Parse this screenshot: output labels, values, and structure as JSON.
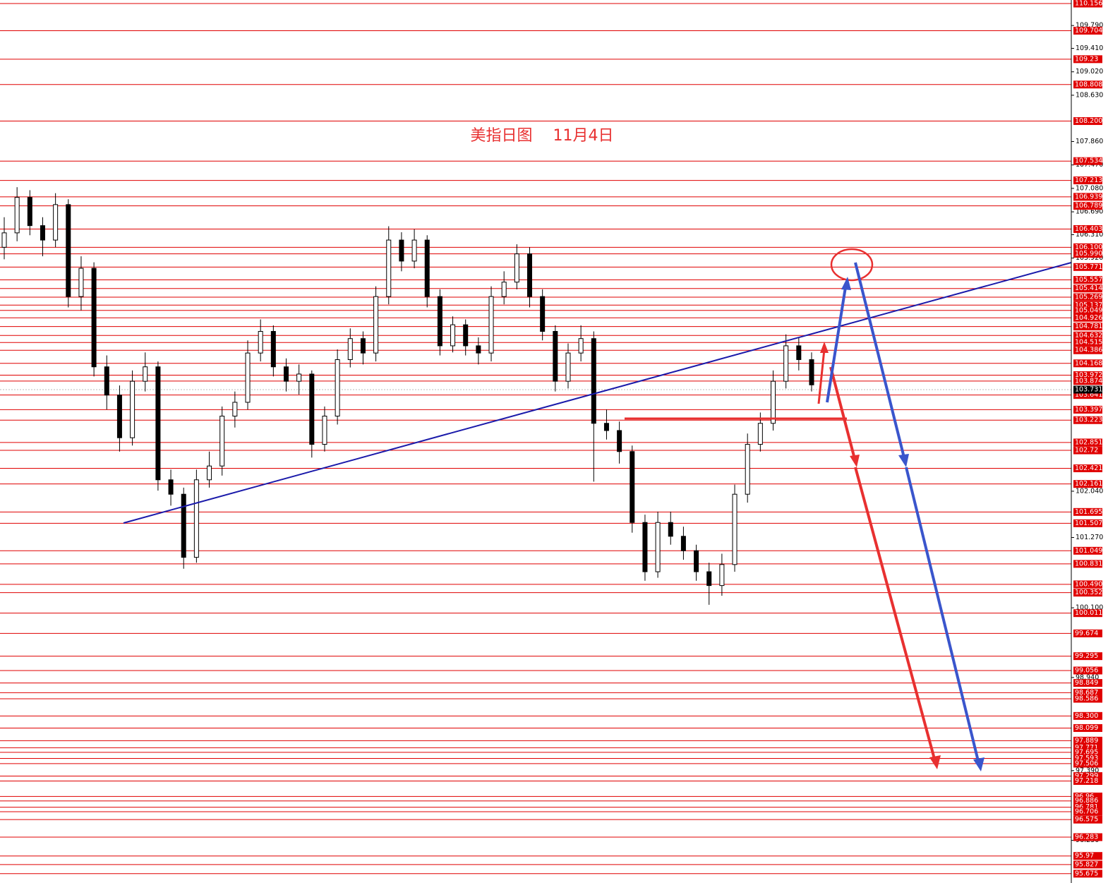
{
  "chart_data": {
    "type": "candlestick",
    "title": "美指日图　 11月4日",
    "ylim": [
      95.52,
      110.215
    ],
    "candle_color": "#000000",
    "level_color": "#e00000",
    "last_price": 103.731,
    "yticks": [
      {
        "value": 109.79,
        "label": "109.790"
      },
      {
        "value": 109.41,
        "label": "109.410"
      },
      {
        "value": 109.02,
        "label": "109.020"
      },
      {
        "value": 108.63,
        "label": "108.630"
      },
      {
        "value": 107.86,
        "label": "107.860"
      },
      {
        "value": 107.47,
        "label": "107.470"
      },
      {
        "value": 107.08,
        "label": "107.080"
      },
      {
        "value": 106.69,
        "label": "106.690"
      },
      {
        "value": 106.31,
        "label": "106.310"
      },
      {
        "value": 105.92,
        "label": "105.920"
      },
      {
        "value": 102.04,
        "label": "102.040"
      },
      {
        "value": 101.27,
        "label": "101.270"
      },
      {
        "value": 100.1,
        "label": "100.100"
      },
      {
        "value": 98.94,
        "label": "98.940"
      },
      {
        "value": 97.39,
        "label": "97.390"
      },
      {
        "value": 96.23,
        "label": "96.230"
      }
    ],
    "levels": [
      110.156,
      109.704,
      109.23,
      108.808,
      {
        "value": 108.2,
        "label": "108.200"
      },
      107.534,
      107.213,
      106.939,
      106.789,
      106.403,
      {
        "value": 106.1,
        "label": "106.100"
      },
      {
        "value": 105.99,
        "label": "105.990"
      },
      105.771,
      105.557,
      105.414,
      105.269,
      105.137,
      105.049,
      104.926,
      104.781,
      104.632,
      104.515,
      104.386,
      104.168,
      103.972,
      103.874,
      103.641,
      103.397,
      103.223,
      102.851,
      102.72,
      102.421,
      102.161,
      101.695,
      101.507,
      101.049,
      100.831,
      {
        "value": 100.49,
        "label": "100.490"
      },
      100.352,
      100.011,
      99.674,
      99.295,
      99.056,
      98.849,
      98.687,
      98.586,
      {
        "value": 98.3,
        "label": "98.300"
      },
      98.099,
      97.889,
      97.771,
      97.695,
      97.593,
      97.506,
      97.299,
      97.218,
      96.96,
      96.886,
      96.781,
      96.706,
      96.575,
      96.283,
      95.97,
      95.827,
      95.675
    ],
    "candles": [
      [
        106.1,
        106.6,
        105.9,
        106.34
      ],
      [
        106.34,
        107.1,
        106.2,
        106.93
      ],
      [
        106.93,
        107.05,
        106.3,
        106.46
      ],
      [
        106.46,
        106.6,
        105.95,
        106.22
      ],
      [
        106.22,
        107.0,
        106.1,
        106.81
      ],
      [
        106.81,
        106.9,
        105.1,
        105.28
      ],
      [
        105.28,
        105.95,
        105.05,
        105.75
      ],
      [
        105.75,
        105.85,
        103.95,
        104.11
      ],
      [
        104.11,
        104.3,
        103.4,
        103.64
      ],
      [
        103.64,
        103.8,
        102.7,
        102.93
      ],
      [
        102.93,
        104.05,
        102.8,
        103.87
      ],
      [
        103.87,
        104.35,
        103.7,
        104.11
      ],
      [
        104.11,
        104.2,
        102.05,
        102.23
      ],
      [
        102.23,
        102.4,
        101.8,
        101.99
      ],
      [
        101.99,
        102.1,
        100.75,
        100.94
      ],
      [
        100.94,
        102.4,
        100.85,
        102.23
      ],
      [
        102.23,
        102.7,
        102.1,
        102.46
      ],
      [
        102.46,
        103.45,
        102.3,
        103.29
      ],
      [
        103.29,
        103.7,
        103.1,
        103.52
      ],
      [
        103.52,
        104.55,
        103.4,
        104.34
      ],
      [
        104.34,
        104.9,
        104.2,
        104.7
      ],
      [
        104.7,
        104.8,
        103.95,
        104.11
      ],
      [
        104.11,
        104.25,
        103.7,
        103.87
      ],
      [
        103.87,
        104.15,
        103.65,
        103.99
      ],
      [
        103.99,
        104.05,
        102.6,
        102.82
      ],
      [
        102.82,
        103.45,
        102.7,
        103.29
      ],
      [
        103.29,
        104.4,
        103.15,
        104.23
      ],
      [
        104.23,
        104.75,
        104.1,
        104.58
      ],
      [
        104.58,
        104.7,
        104.15,
        104.34
      ],
      [
        104.34,
        105.45,
        104.2,
        105.28
      ],
      [
        105.28,
        106.45,
        105.15,
        106.22
      ],
      [
        106.22,
        106.35,
        105.7,
        105.87
      ],
      [
        105.87,
        106.4,
        105.75,
        106.22
      ],
      [
        106.22,
        106.3,
        105.1,
        105.28
      ],
      [
        105.28,
        105.4,
        104.3,
        104.46
      ],
      [
        104.46,
        104.95,
        104.35,
        104.81
      ],
      [
        104.81,
        104.9,
        104.3,
        104.46
      ],
      [
        104.46,
        104.6,
        104.15,
        104.34
      ],
      [
        104.34,
        105.45,
        104.2,
        105.28
      ],
      [
        105.28,
        105.7,
        105.15,
        105.52
      ],
      [
        105.52,
        106.15,
        105.4,
        105.99
      ],
      [
        105.99,
        106.1,
        105.1,
        105.28
      ],
      [
        105.28,
        105.4,
        104.55,
        104.7
      ],
      [
        104.7,
        104.8,
        103.7,
        103.87
      ],
      [
        103.87,
        104.5,
        103.75,
        104.34
      ],
      [
        104.34,
        104.8,
        104.2,
        104.58
      ],
      [
        104.58,
        104.7,
        102.2,
        103.17
      ],
      [
        103.17,
        103.4,
        102.9,
        103.05
      ],
      [
        103.05,
        103.2,
        102.5,
        102.7
      ],
      [
        102.7,
        102.8,
        101.35,
        101.52
      ],
      [
        101.52,
        101.65,
        100.55,
        100.7
      ],
      [
        100.7,
        101.7,
        100.6,
        101.52
      ],
      [
        101.52,
        101.7,
        101.15,
        101.29
      ],
      [
        101.29,
        101.45,
        100.9,
        101.05
      ],
      [
        101.05,
        101.15,
        100.55,
        100.7
      ],
      [
        100.7,
        100.85,
        100.15,
        100.47
      ],
      [
        100.47,
        101.0,
        100.3,
        100.82
      ],
      [
        100.82,
        102.15,
        100.7,
        101.99
      ],
      [
        101.99,
        103.0,
        101.85,
        102.82
      ],
      [
        102.82,
        103.35,
        102.7,
        103.17
      ],
      [
        103.17,
        104.05,
        103.05,
        103.87
      ],
      [
        103.87,
        104.65,
        103.75,
        104.46
      ],
      [
        104.46,
        104.6,
        104.05,
        104.23
      ],
      [
        104.23,
        104.35,
        103.7,
        103.81
      ]
    ]
  }
}
